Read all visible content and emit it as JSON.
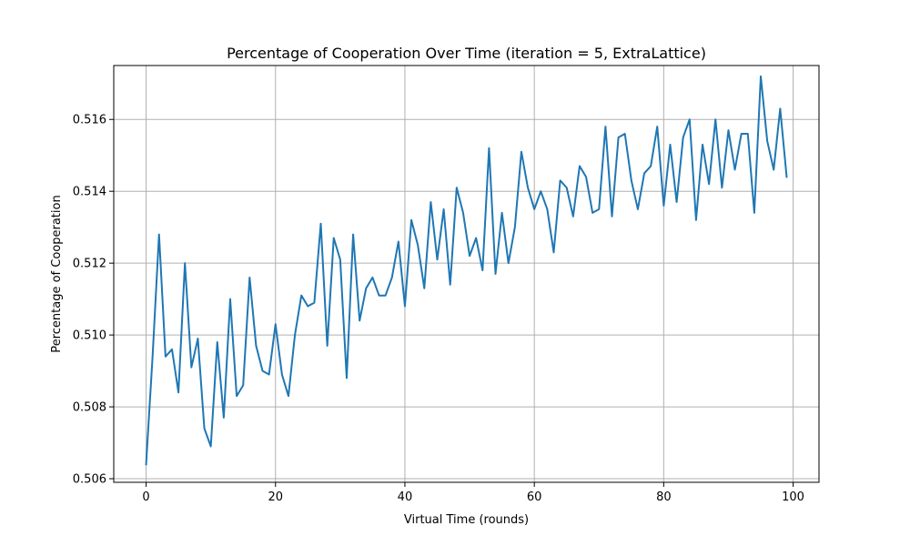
{
  "chart_data": {
    "type": "line",
    "title": "Percentage of Cooperation Over Time (iteration = 5, ExtraLattice)",
    "xlabel": "Virtual Time (rounds)",
    "ylabel": "Percentage of Cooperation",
    "xlim": [
      -5,
      104
    ],
    "ylim": [
      0.5059,
      0.5175
    ],
    "xticks": [
      0,
      20,
      40,
      60,
      80,
      100
    ],
    "xtick_labels": [
      "0",
      "20",
      "40",
      "60",
      "80",
      "100"
    ],
    "yticks": [
      0.506,
      0.508,
      0.51,
      0.512,
      0.514,
      0.516
    ],
    "ytick_labels": [
      "0.506",
      "0.508",
      "0.510",
      "0.512",
      "0.514",
      "0.516"
    ],
    "grid": true,
    "series": [
      {
        "color": "#1f77b4",
        "x": [
          0,
          1,
          2,
          3,
          4,
          5,
          6,
          7,
          8,
          9,
          10,
          11,
          12,
          13,
          14,
          15,
          16,
          17,
          18,
          19,
          20,
          21,
          22,
          23,
          24,
          25,
          26,
          27,
          28,
          29,
          30,
          31,
          32,
          33,
          34,
          35,
          36,
          37,
          38,
          39,
          40,
          41,
          42,
          43,
          44,
          45,
          46,
          47,
          48,
          49,
          50,
          51,
          52,
          53,
          54,
          55,
          56,
          57,
          58,
          59,
          60,
          61,
          62,
          63,
          64,
          65,
          66,
          67,
          68,
          69,
          70,
          71,
          72,
          73,
          74,
          75,
          76,
          77,
          78,
          79,
          80,
          81,
          82,
          83,
          84,
          85,
          86,
          87,
          88,
          89,
          90,
          91,
          92,
          93,
          94,
          95,
          96,
          97,
          98,
          99
        ],
        "y": [
          0.5064,
          0.5094,
          0.5128,
          0.5094,
          0.5096,
          0.5084,
          0.512,
          0.5091,
          0.5099,
          0.5074,
          0.5069,
          0.5098,
          0.5077,
          0.511,
          0.5083,
          0.5086,
          0.5116,
          0.5097,
          0.509,
          0.5089,
          0.5103,
          0.5089,
          0.5083,
          0.51,
          0.5111,
          0.5108,
          0.5109,
          0.5131,
          0.5097,
          0.5127,
          0.5121,
          0.5088,
          0.5128,
          0.5104,
          0.5113,
          0.5116,
          0.5111,
          0.5111,
          0.5116,
          0.5126,
          0.5108,
          0.5132,
          0.5125,
          0.5113,
          0.5137,
          0.5121,
          0.5135,
          0.5114,
          0.5141,
          0.5134,
          0.5122,
          0.5127,
          0.5118,
          0.5152,
          0.5117,
          0.5134,
          0.512,
          0.513,
          0.5151,
          0.5141,
          0.5135,
          0.514,
          0.5135,
          0.5123,
          0.5143,
          0.5141,
          0.5133,
          0.5147,
          0.5144,
          0.5134,
          0.5135,
          0.5158,
          0.5133,
          0.5155,
          0.5156,
          0.5143,
          0.5135,
          0.5145,
          0.5147,
          0.5158,
          0.5136,
          0.5153,
          0.5137,
          0.5155,
          0.516,
          0.5132,
          0.5153,
          0.5142,
          0.516,
          0.5141,
          0.5157,
          0.5146,
          0.5156,
          0.5156,
          0.5134,
          0.5172,
          0.5154,
          0.5146,
          0.5163,
          0.5144
        ]
      }
    ]
  }
}
